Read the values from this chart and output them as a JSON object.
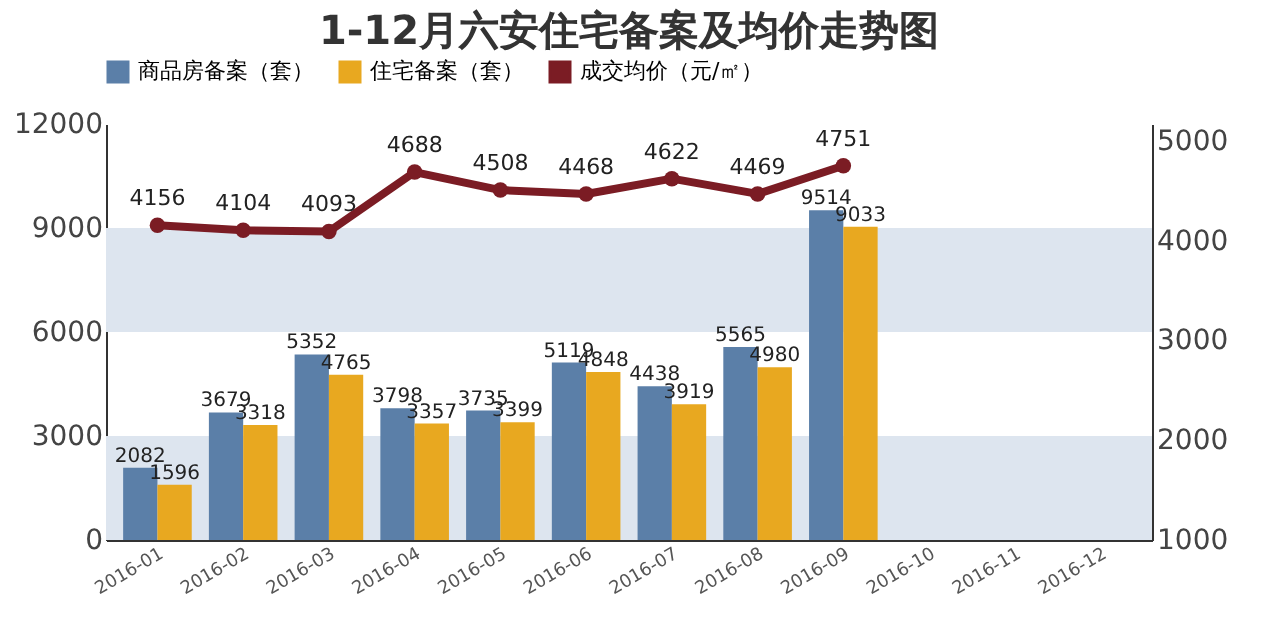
{
  "chart_data": {
    "type": "bar",
    "title": "1-12月六安住宅备案及均价走势图",
    "categories": [
      "2016-01",
      "2016-02",
      "2016-03",
      "2016-04",
      "2016-05",
      "2016-06",
      "2016-07",
      "2016-08",
      "2016-09",
      "2016-10",
      "2016-11",
      "2016-12"
    ],
    "series": [
      {
        "name": "商品房备案（套）",
        "color": "#5b7fa8",
        "values": [
          2082,
          3679,
          5352,
          3798,
          3735,
          5119,
          4438,
          5565,
          9514,
          null,
          null,
          null
        ]
      },
      {
        "name": "住宅备案（套）",
        "color": "#e8a820",
        "values": [
          1596,
          3318,
          4765,
          3357,
          3399,
          4848,
          3919,
          4980,
          9033,
          null,
          null,
          null
        ]
      },
      {
        "name": "成交均价（元/㎡）",
        "type": "line",
        "axis": "y2",
        "color": "#7b1c24",
        "values": [
          4156,
          4104,
          4093,
          4688,
          4508,
          4468,
          4622,
          4469,
          4751,
          null,
          null,
          null
        ]
      }
    ],
    "ylim": [
      0,
      12000
    ],
    "yticks": [
      0,
      3000,
      6000,
      9000,
      12000
    ],
    "y2lim": [
      1000,
      5170
    ],
    "y2ticks": [
      1000,
      2000,
      3000,
      4000,
      5000
    ],
    "bands": [
      {
        "axis": "y",
        "from": 0,
        "to": 3000,
        "color": "#dde5ef"
      },
      {
        "axis": "y",
        "from": 6000,
        "to": 9000,
        "color": "#dde5ef"
      }
    ],
    "data_labels": true,
    "legend": "top",
    "marker": "circle",
    "grid": false
  }
}
